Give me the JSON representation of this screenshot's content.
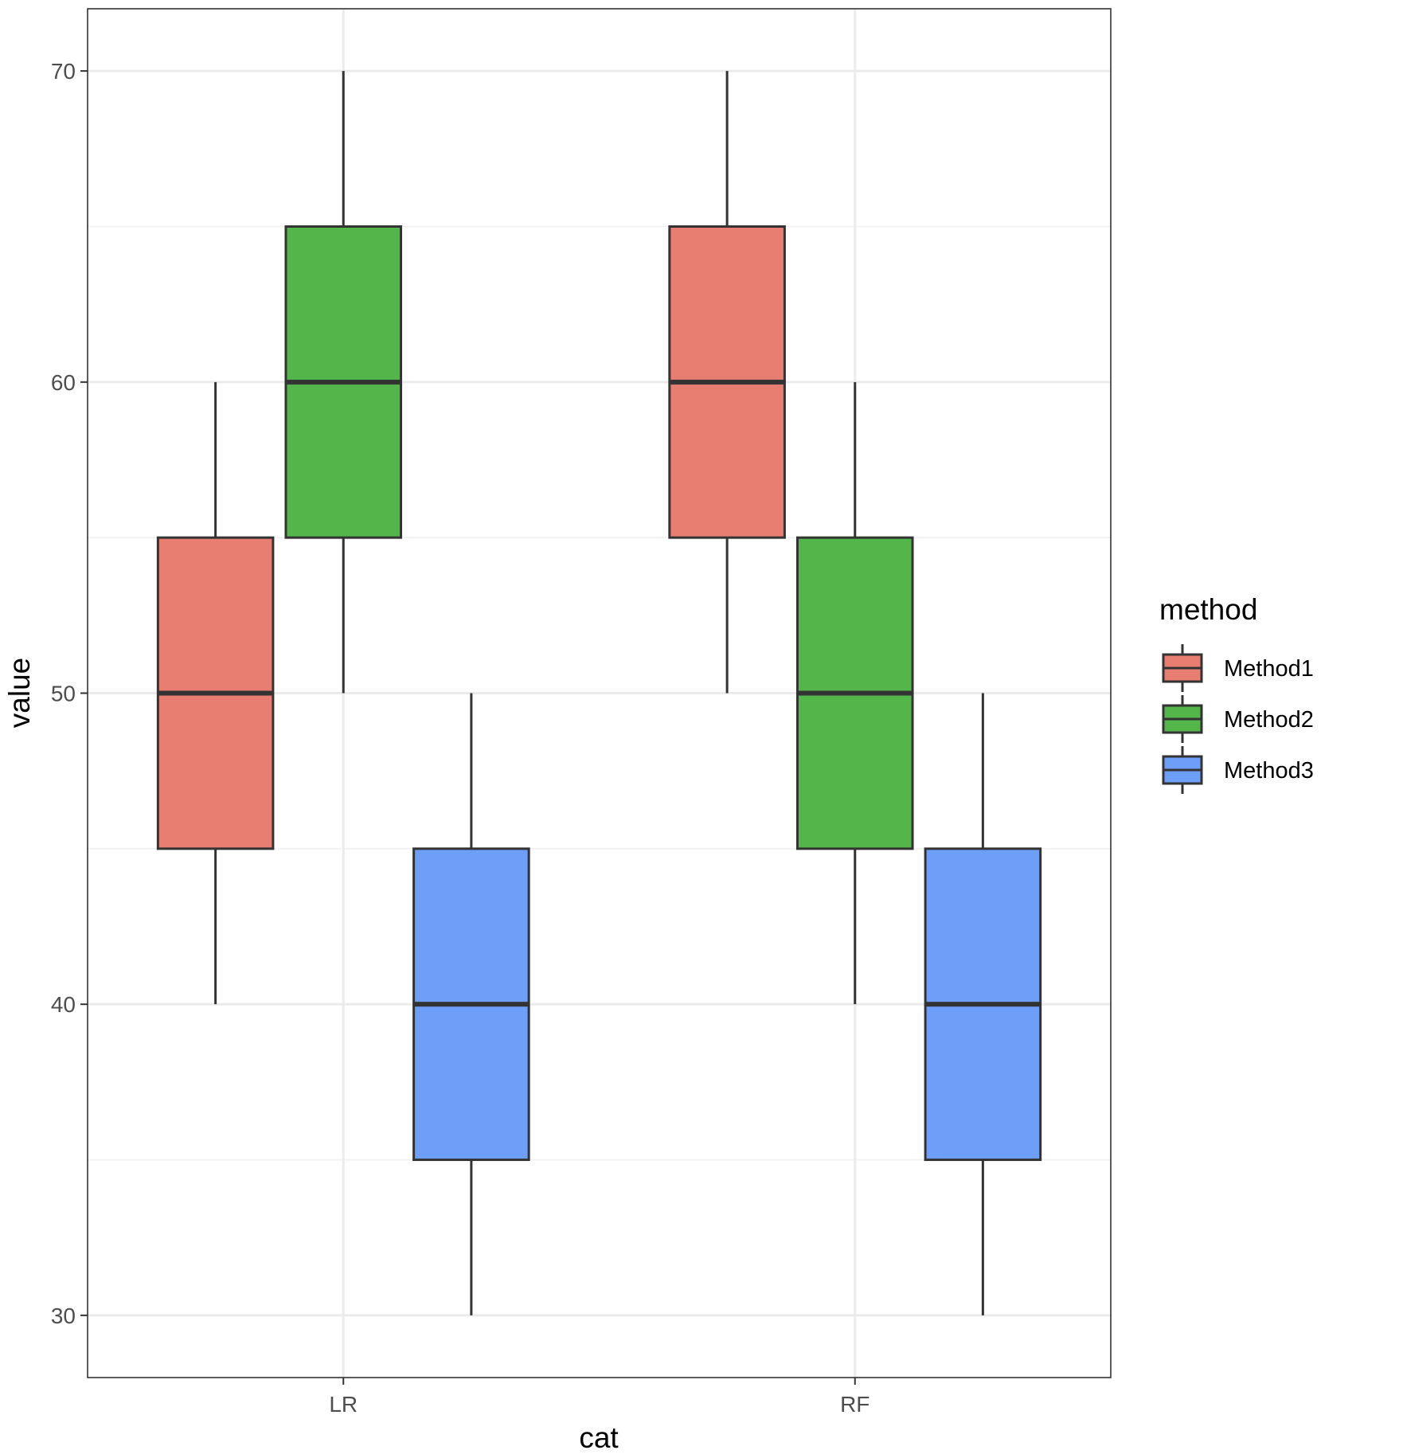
{
  "chart_data": {
    "type": "boxplot",
    "title": "",
    "xlabel": "cat",
    "ylabel": "value",
    "categories": [
      "LR",
      "RF"
    ],
    "ylim": [
      28,
      72
    ],
    "yticks": [
      30,
      40,
      50,
      60,
      70
    ],
    "grid": true,
    "legend": {
      "title": "method",
      "placement": "right"
    },
    "series": [
      {
        "name": "Method1",
        "color": "#e87d72",
        "boxes": [
          {
            "category": "LR",
            "min": 40,
            "q1": 45,
            "median": 50,
            "q3": 55,
            "max": 60
          },
          {
            "category": "RF",
            "min": 50,
            "q1": 55,
            "median": 60,
            "q3": 65,
            "max": 70
          }
        ]
      },
      {
        "name": "Method2",
        "color": "#53b64b",
        "boxes": [
          {
            "category": "LR",
            "min": 50,
            "q1": 55,
            "median": 60,
            "q3": 65,
            "max": 70
          },
          {
            "category": "RF",
            "min": 40,
            "q1": 45,
            "median": 50,
            "q3": 55,
            "max": 60
          }
        ]
      },
      {
        "name": "Method3",
        "color": "#6d9ef8",
        "boxes": [
          {
            "category": "LR",
            "min": 30,
            "q1": 35,
            "median": 40,
            "q3": 45,
            "max": 50
          },
          {
            "category": "RF",
            "min": 30,
            "q1": 35,
            "median": 40,
            "q3": 45,
            "max": 50
          }
        ]
      }
    ]
  }
}
